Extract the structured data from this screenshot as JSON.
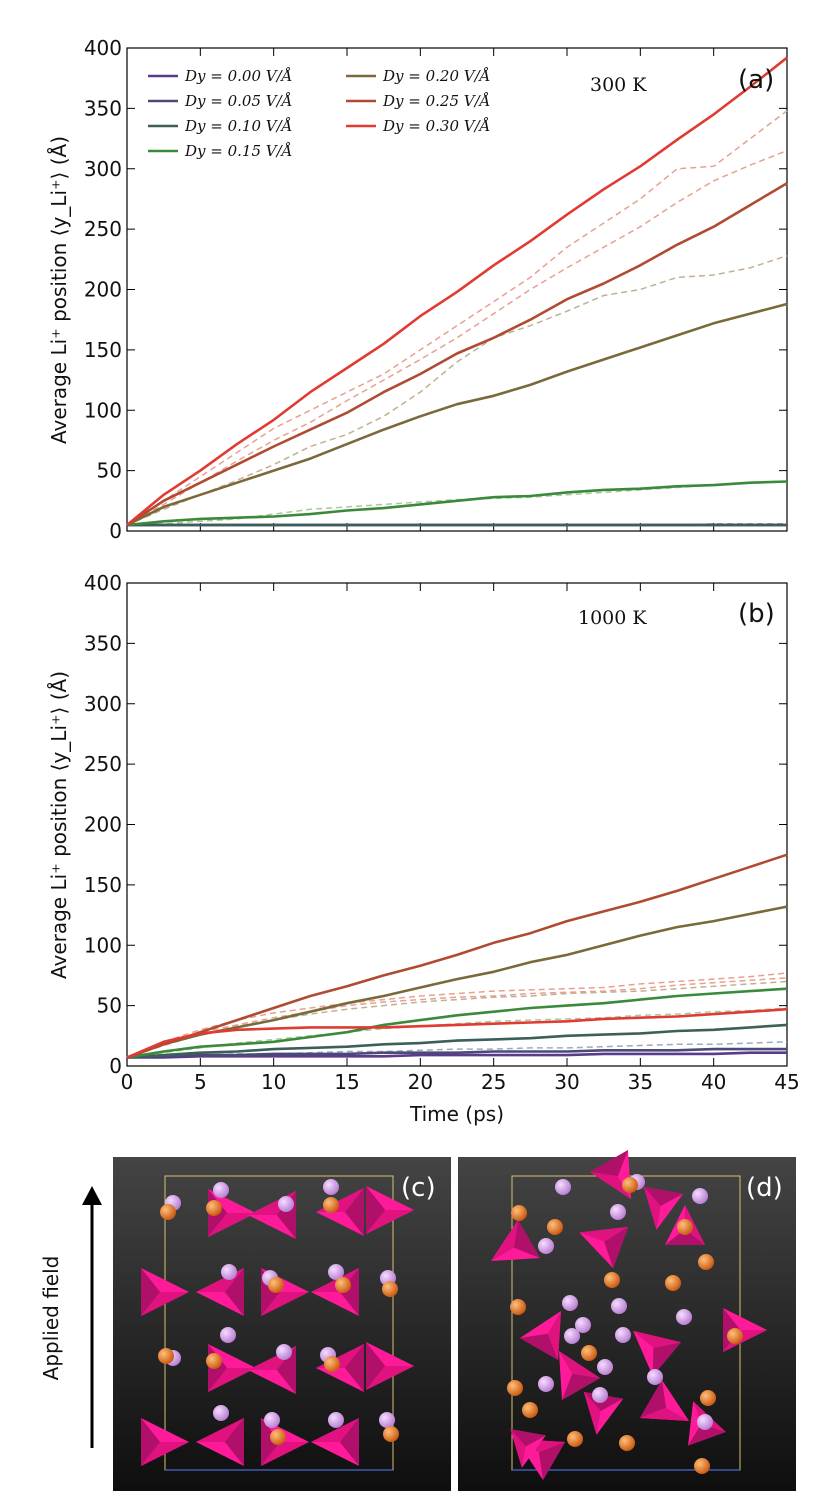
{
  "chart_data": [
    {
      "panel": "(a)",
      "type": "line",
      "annotation": "300 K",
      "xlabel": "Time (ps)",
      "ylabel": "Average Li⁺ position ⟨y_Li⁺⟩ (Å)",
      "xlim": [
        0,
        45
      ],
      "ylim": [
        0,
        400
      ],
      "xticks": [
        0,
        5,
        10,
        15,
        20,
        25,
        30,
        35,
        40,
        45
      ],
      "yticks": [
        0,
        50,
        100,
        150,
        200,
        250,
        300,
        350,
        400
      ],
      "x": [
        0,
        2.5,
        5,
        7.5,
        10,
        12.5,
        15,
        17.5,
        20,
        22.5,
        25,
        27.5,
        30,
        32.5,
        35,
        37.5,
        40,
        42.5,
        45
      ],
      "series": [
        {
          "name": "D_y = 0.00 V/Å",
          "color": "#5b3a8c",
          "values": [
            5,
            5,
            5,
            5,
            5,
            5,
            5,
            5,
            5,
            5,
            5,
            5,
            5,
            5,
            5,
            5,
            5,
            5,
            5
          ]
        },
        {
          "name": "D_y = 0.05 V/Å",
          "color": "#4a4a78",
          "values": [
            5,
            5,
            5,
            5,
            5,
            5,
            5,
            5,
            5,
            5,
            5,
            5,
            5,
            5,
            5,
            5,
            5,
            5,
            5
          ]
        },
        {
          "name": "D_y = 0.10 V/Å",
          "color": "#3d5f5a",
          "values": [
            5,
            5,
            5,
            5,
            5,
            5,
            5,
            5,
            5,
            5,
            5,
            5,
            5,
            5,
            5,
            5,
            5,
            5,
            5
          ]
        },
        {
          "name": "D_y = 0.15 V/Å",
          "color": "#3b8a3b",
          "values": [
            5,
            8,
            10,
            11,
            12,
            14,
            17,
            19,
            22,
            25,
            28,
            29,
            32,
            34,
            35,
            37,
            38,
            40,
            41
          ]
        },
        {
          "name": "D_y = 0.20 V/Å",
          "color": "#7a6a3a",
          "values": [
            5,
            20,
            30,
            40,
            50,
            60,
            72,
            84,
            95,
            105,
            112,
            121,
            132,
            142,
            152,
            162,
            172,
            180,
            188
          ]
        },
        {
          "name": "D_y = 0.25 V/Å",
          "color": "#b04a32",
          "values": [
            5,
            25,
            40,
            55,
            70,
            84,
            98,
            115,
            130,
            147,
            160,
            175,
            192,
            205,
            220,
            237,
            252,
            270,
            288
          ]
        },
        {
          "name": "D_y = 0.30 V/Å",
          "color": "#e03a32",
          "values": [
            5,
            30,
            50,
            72,
            92,
            115,
            135,
            155,
            178,
            198,
            220,
            240,
            262,
            283,
            302,
            324,
            345,
            368,
            392
          ]
        }
      ],
      "dashed_series": [
        {
          "color": "#e8a090",
          "values": [
            5,
            25,
            45,
            65,
            85,
            100,
            115,
            130,
            150,
            170,
            190,
            210,
            235,
            255,
            275,
            300,
            302,
            325,
            348
          ]
        },
        {
          "color": "#e8a090",
          "values": [
            5,
            22,
            40,
            58,
            75,
            90,
            108,
            125,
            142,
            160,
            180,
            200,
            218,
            235,
            252,
            272,
            290,
            303,
            315
          ]
        },
        {
          "color": "#c0b090",
          "values": [
            5,
            18,
            30,
            42,
            55,
            70,
            80,
            95,
            115,
            140,
            160,
            170,
            182,
            195,
            200,
            210,
            212,
            218,
            228
          ]
        },
        {
          "color": "#a8c8a0",
          "values": [
            5,
            6,
            8,
            10,
            14,
            18,
            20,
            22,
            24,
            26,
            27,
            28,
            30,
            32,
            34,
            36,
            38,
            40,
            41
          ]
        },
        {
          "color": "#a0a8c0",
          "values": [
            5,
            5,
            5,
            5,
            5,
            5,
            5,
            5,
            5,
            5,
            5,
            5,
            5,
            5,
            5,
            5,
            6,
            6,
            6
          ]
        }
      ]
    },
    {
      "panel": "(b)",
      "type": "line",
      "annotation": "1000 K",
      "xlabel": "Time (ps)",
      "ylabel": "Average Li⁺ position ⟨y_Li⁺⟩ (Å)",
      "xlim": [
        0,
        45
      ],
      "ylim": [
        0,
        400
      ],
      "xticks": [
        0,
        5,
        10,
        15,
        20,
        25,
        30,
        35,
        40,
        45
      ],
      "yticks": [
        0,
        50,
        100,
        150,
        200,
        250,
        300,
        350,
        400
      ],
      "x": [
        0,
        2.5,
        5,
        7.5,
        10,
        12.5,
        15,
        17.5,
        20,
        22.5,
        25,
        27.5,
        30,
        32.5,
        35,
        37.5,
        40,
        42.5,
        45
      ],
      "series": [
        {
          "name": "D_y = 0.00 V/Å",
          "color": "#5b3a8c",
          "values": [
            7,
            7,
            8,
            8,
            8,
            8,
            8,
            8,
            9,
            9,
            9,
            9,
            9,
            10,
            10,
            10,
            10,
            11,
            11
          ]
        },
        {
          "name": "D_y = 0.05 V/Å",
          "color": "#4a4a78",
          "values": [
            7,
            8,
            9,
            9,
            10,
            10,
            10,
            11,
            11,
            11,
            12,
            12,
            12,
            13,
            13,
            13,
            14,
            14,
            14
          ]
        },
        {
          "name": "D_y = 0.10 V/Å",
          "color": "#3d5f5a",
          "values": [
            7,
            9,
            11,
            12,
            14,
            15,
            16,
            18,
            19,
            21,
            22,
            23,
            25,
            26,
            27,
            29,
            30,
            32,
            34
          ]
        },
        {
          "name": "D_y = 0.15 V/Å",
          "color": "#3b8a3b",
          "values": [
            7,
            12,
            16,
            18,
            20,
            24,
            28,
            34,
            38,
            42,
            45,
            48,
            50,
            52,
            55,
            58,
            60,
            62,
            64
          ]
        },
        {
          "name": "D_y = 0.20 V/Å",
          "color": "#7a6a3a",
          "values": [
            7,
            18,
            26,
            32,
            38,
            45,
            52,
            58,
            65,
            72,
            78,
            86,
            92,
            100,
            108,
            115,
            120,
            126,
            132
          ]
        },
        {
          "name": "D_y = 0.25 V/Å",
          "color": "#b04a32",
          "values": [
            7,
            18,
            28,
            38,
            48,
            58,
            66,
            75,
            83,
            92,
            102,
            110,
            120,
            128,
            136,
            145,
            155,
            165,
            175
          ]
        },
        {
          "name": "D_y = 0.30 V/Å",
          "color": "#e03a32",
          "values": [
            7,
            20,
            27,
            30,
            31,
            32,
            32,
            32,
            33,
            34,
            35,
            36,
            37,
            39,
            40,
            41,
            43,
            45,
            47
          ]
        }
      ],
      "dashed_series": [
        {
          "color": "#e8a090",
          "values": [
            7,
            20,
            30,
            38,
            44,
            48,
            52,
            55,
            58,
            60,
            62,
            63,
            64,
            65,
            68,
            70,
            72,
            74,
            77
          ]
        },
        {
          "color": "#e8a090",
          "values": [
            7,
            18,
            28,
            34,
            40,
            45,
            50,
            53,
            55,
            57,
            58,
            60,
            61,
            62,
            64,
            67,
            69,
            71,
            73
          ]
        },
        {
          "color": "#c0b090",
          "values": [
            7,
            17,
            26,
            33,
            38,
            43,
            47,
            50,
            53,
            55,
            57,
            58,
            60,
            61,
            62,
            64,
            66,
            68,
            70
          ]
        },
        {
          "color": "#a8c8a0",
          "values": [
            7,
            11,
            15,
            19,
            22,
            25,
            28,
            31,
            33,
            35,
            37,
            38,
            39,
            40,
            42,
            43,
            45,
            46,
            48
          ]
        },
        {
          "color": "#a0a8c0",
          "values": [
            7,
            8,
            9,
            10,
            10,
            11,
            12,
            12,
            13,
            14,
            14,
            15,
            15,
            16,
            17,
            18,
            18,
            19,
            20
          ]
        }
      ]
    }
  ],
  "legend": {
    "entries": [
      "D_y = 0.00 V/Å",
      "D_y = 0.05 V/Å",
      "D_y = 0.10 V/Å",
      "D_y = 0.15 V/Å",
      "D_y = 0.20 V/Å",
      "D_y = 0.25 V/Å",
      "D_y = 0.30 V/Å"
    ],
    "display": [
      "Dy = 0.00 V/Å",
      "Dy = 0.05 V/Å",
      "Dy = 0.10 V/Å",
      "Dy = 0.15 V/Å",
      "Dy = 0.20 V/Å",
      "Dy = 0.25 V/Å",
      "Dy = 0.30 V/Å"
    ]
  },
  "labels": {
    "panel_a": "(a)",
    "panel_b": "(b)",
    "panel_c": "(c)",
    "panel_d": "(d)",
    "temp_a": "300 K",
    "temp_b": "1000 K",
    "xlabel": "Time (ps)",
    "ylabel": "Average Li⁺ position ⟨y_Li⁺⟩ (Å)",
    "applied_field": "Applied field"
  },
  "colors": {
    "render_bg_top": "#3a3a3a",
    "render_bg_bottom": "#111111",
    "tetrahedron": "#ff1a9a",
    "li_atom": "#e0a8f0",
    "o_atom": "#f07a20"
  }
}
